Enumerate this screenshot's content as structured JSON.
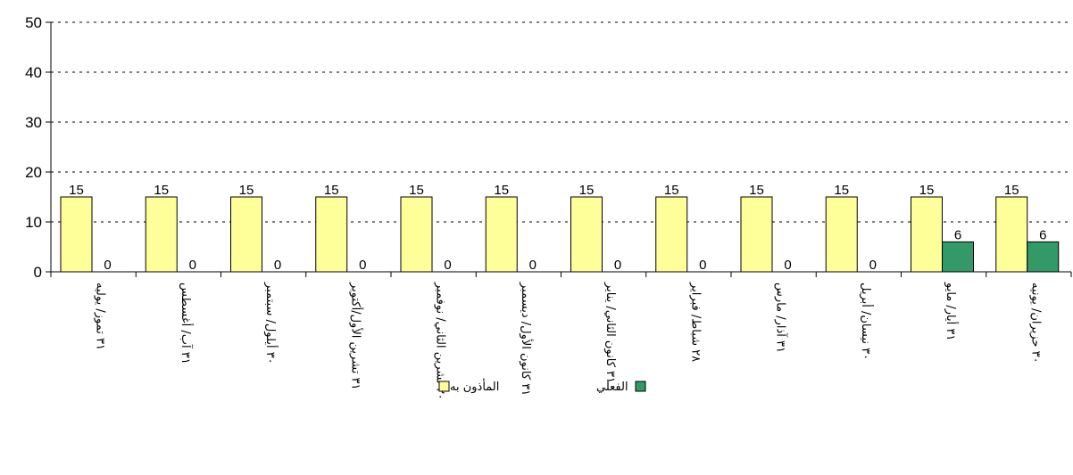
{
  "chart_data": {
    "type": "bar",
    "ylim": [
      0,
      50
    ],
    "yticks": [
      0,
      10,
      20,
      30,
      40,
      50
    ],
    "grid": true,
    "legend_position": "bottom",
    "categories": [
      "٣١ تموز/ يوليه",
      "٣١ آب/ أغسطس",
      "٣٠ أيلول/ سبتمبر",
      "٣١ تشرين الأول/أكتوبر",
      "٣٠ تشرين الثاني/ نوفمبر",
      "٣١ كانون الأول/ ديسمبر",
      "٣١ كانون الثاني/ يناير",
      "٢٨ شباط/ فبراير",
      "٣١ آذار/ مارس",
      "٣٠ نيسان/ أبريل",
      "٣١ أيار/ مايو",
      "٣٠ حزيران/ يونيه"
    ],
    "series": [
      {
        "name": "المأذون به",
        "color": "#ffff99",
        "values": [
          15,
          15,
          15,
          15,
          15,
          15,
          15,
          15,
          15,
          15,
          15,
          15
        ]
      },
      {
        "name": "الفعلي",
        "color": "#339966",
        "values": [
          0,
          0,
          0,
          0,
          0,
          0,
          0,
          0,
          0,
          0,
          6,
          6
        ]
      }
    ]
  }
}
